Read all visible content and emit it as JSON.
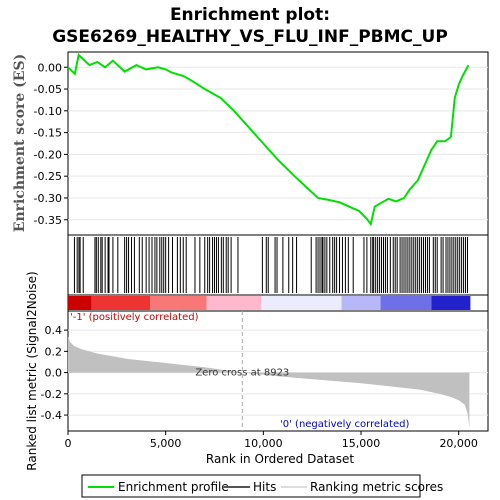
{
  "chart_data": {
    "type": "line",
    "title_line1": "Enrichment plot:",
    "title_line2": "GSE6269_HEALTHY_VS_FLU_INF_PBMC_UP",
    "es_panel": {
      "ylabel": "Enrichment score (ES)",
      "ylim": [
        -0.385,
        0.035
      ],
      "yticks": [
        0.0,
        -0.05,
        -0.1,
        -0.15,
        -0.2,
        -0.25,
        -0.3,
        -0.35
      ],
      "ytick_labels": [
        "0.00",
        "-0.05",
        "-0.10",
        "-0.15",
        "-0.20",
        "-0.25",
        "-0.30",
        "-0.35"
      ],
      "series_name": "Enrichment profile",
      "color": "#00e000",
      "x": [
        0,
        350,
        550,
        1100,
        1500,
        1900,
        2300,
        2900,
        3500,
        4000,
        4600,
        5000,
        5300,
        5900,
        6300,
        7000,
        7800,
        8500,
        9200,
        10000,
        10800,
        11600,
        12200,
        12800,
        13400,
        13900,
        14400,
        14900,
        15300,
        15500,
        15700,
        16000,
        16400,
        16800,
        17200,
        17500,
        17900,
        18300,
        18600,
        18900,
        19300,
        19600,
        19800,
        20000,
        20200,
        20500
      ],
      "y": [
        0.0,
        -0.015,
        0.028,
        0.005,
        0.012,
        0.0,
        0.015,
        -0.01,
        0.005,
        -0.005,
        0.0,
        -0.005,
        -0.012,
        -0.02,
        -0.03,
        -0.05,
        -0.07,
        -0.1,
        -0.135,
        -0.175,
        -0.215,
        -0.25,
        -0.275,
        -0.3,
        -0.305,
        -0.31,
        -0.32,
        -0.33,
        -0.348,
        -0.36,
        -0.32,
        -0.312,
        -0.302,
        -0.308,
        -0.3,
        -0.28,
        -0.26,
        -0.22,
        -0.19,
        -0.17,
        -0.17,
        -0.16,
        -0.07,
        -0.04,
        -0.02,
        0.005
      ]
    },
    "hits_panel": {
      "series_name": "Hits",
      "color": "#000000",
      "hits": [
        330,
        470,
        560,
        620,
        780,
        1380,
        1450,
        1550,
        1680,
        1750,
        1900,
        2050,
        2100,
        2300,
        2550,
        2900,
        3000,
        3100,
        3250,
        3400,
        3650,
        3800,
        4000,
        4150,
        4300,
        4450,
        4550,
        4700,
        4800,
        4900,
        5000,
        5150,
        5350,
        5600,
        5750,
        5900,
        6050,
        6500,
        6750,
        7000,
        7150,
        7250,
        7400,
        7500,
        7600,
        7700,
        7850,
        7950,
        8100,
        8200,
        8350,
        8700,
        9950,
        10150,
        10250,
        10600,
        10700,
        11000,
        11300,
        11500,
        11700,
        12450,
        12700,
        12800,
        12900,
        13000,
        13050,
        13150,
        13250,
        13400,
        13550,
        13650,
        13750,
        13900,
        14050,
        14200,
        14350,
        14600,
        15150,
        15300,
        15500,
        15600,
        15650,
        15750,
        15850,
        15950,
        16050,
        16150,
        16250,
        16350,
        16500,
        16650,
        16750,
        16850,
        17000,
        17100,
        17200,
        17300,
        17400,
        17500,
        17600,
        17700,
        17800,
        17900,
        18000,
        18100,
        18200,
        18300,
        18400,
        18500,
        18700,
        18800,
        18900,
        19100,
        19200,
        19350,
        19450,
        19550,
        19650,
        19750,
        19850,
        19950,
        20050,
        20150,
        20250,
        20350,
        20450
      ]
    },
    "rank_bar": {
      "colors": [
        "#cc0000",
        "#ee3333",
        "#f87878",
        "#ffb8cc",
        "#ececff",
        "#b8b8f8",
        "#6f6fe8",
        "#2222cc"
      ],
      "stops": [
        0,
        1200,
        4200,
        7100,
        9900,
        14000,
        16000,
        18600,
        20600
      ]
    },
    "metric_panel": {
      "ylabel": "Ranked list metric (Signal2Noise)",
      "ylim": [
        -0.55,
        0.58
      ],
      "yticks": [
        0.4,
        0.2,
        0.0,
        -0.2,
        -0.4
      ],
      "ytick_labels": [
        "0.4",
        "0.2",
        "0.0",
        "-0.2",
        "-0.4"
      ],
      "series_name": "Ranking metric scores",
      "color": "#c0c0c0",
      "x": [
        0,
        100,
        300,
        700,
        1500,
        3000,
        5000,
        7000,
        8923,
        11000,
        13000,
        15000,
        16500,
        18000,
        19000,
        19600,
        20000,
        20300,
        20450,
        20550
      ],
      "y": [
        0.34,
        0.29,
        0.25,
        0.22,
        0.18,
        0.13,
        0.09,
        0.05,
        0.0,
        -0.04,
        -0.07,
        -0.1,
        -0.13,
        -0.16,
        -0.2,
        -0.23,
        -0.26,
        -0.3,
        -0.38,
        -0.52
      ],
      "zero_cross_label": "Zero cross at 8923",
      "zero_cross_x": 8923,
      "pos_label": "'-1' (positively correlated)",
      "neg_label": "'0' (negatively correlated)"
    },
    "xaxis": {
      "label": "Rank in Ordered Dataset",
      "xlim": [
        0,
        21500
      ],
      "xticks": [
        0,
        5000,
        10000,
        15000,
        20000
      ],
      "xtick_labels": [
        "0",
        "5,000",
        "10,000",
        "15,000",
        "20,000"
      ]
    },
    "legend": {
      "placement": "bottom",
      "items": [
        "Enrichment profile",
        "Hits",
        "Ranking metric scores"
      ]
    }
  }
}
